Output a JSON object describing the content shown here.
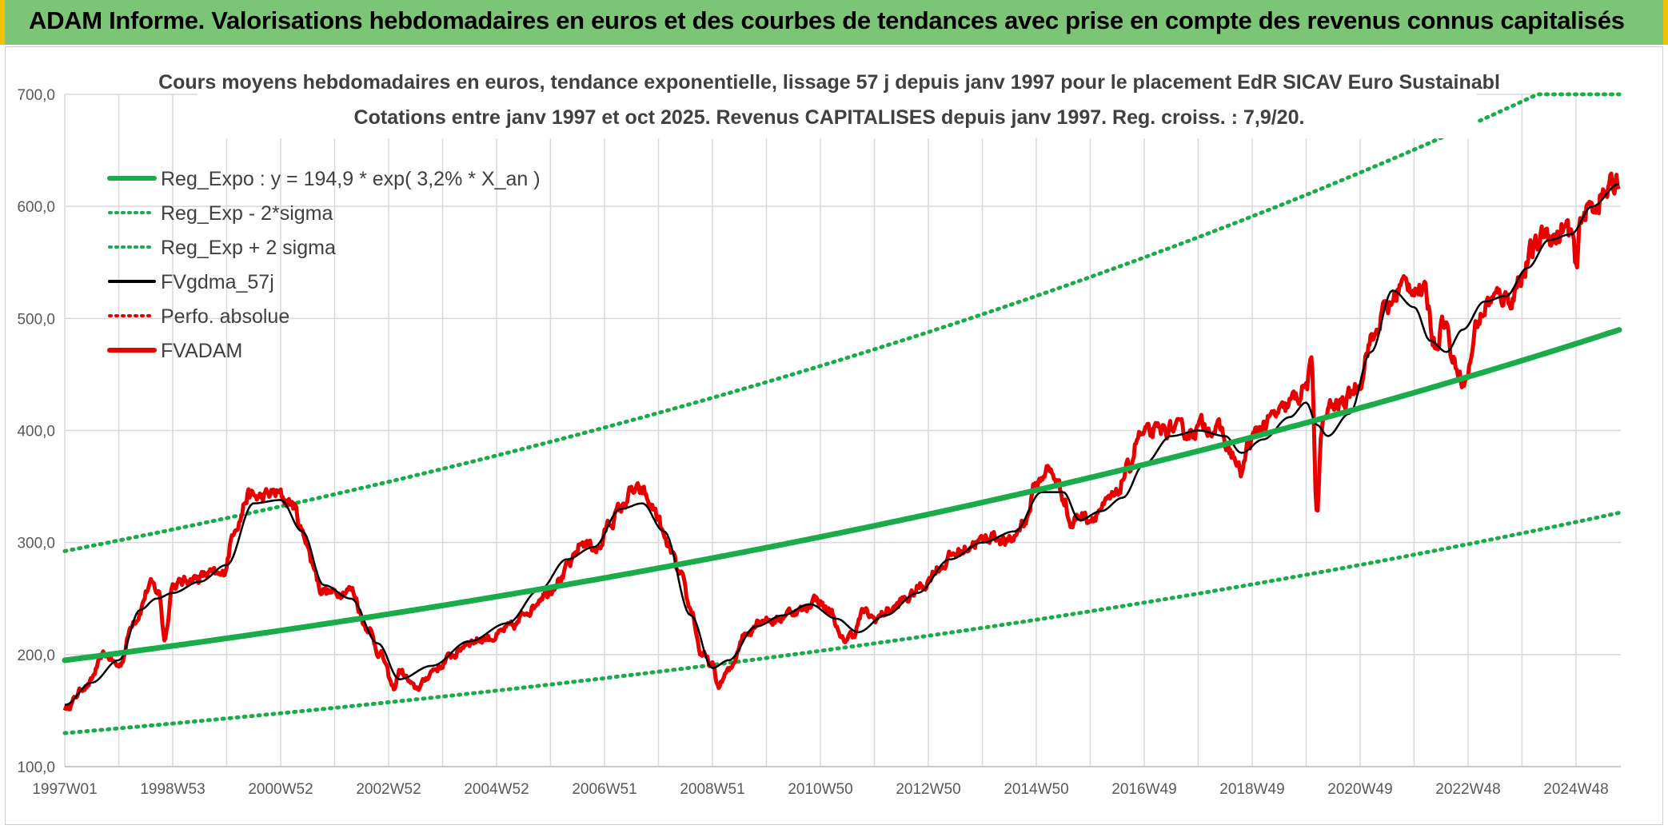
{
  "banner": {
    "title": "ADAM Informe. Valorisations hebdomadaires en euros et des courbes de tendances avec prise en compte des revenus connus capitalisés"
  },
  "colors": {
    "banner_bg": "#7cc576",
    "banner_edge": "#f2c200",
    "reg_expo": "#1aab4b",
    "sigma_band": "#1aab4b",
    "fvgdma": "#000000",
    "perfo": "#e60000",
    "fvadam": "#e60000"
  },
  "chart_data": {
    "type": "line",
    "title": "Cours moyens hebdomadaires en euros, tendance exponentielle, lissage 57 j depuis janv 1997 pour le placement EdR SICAV Euro Sustainabl",
    "subtitle": "Cotations entre janv 1997 et oct 2025. Revenus CAPITALISES depuis janv 1997. Reg. croiss. : 7,9/20.",
    "xlabel": "",
    "ylabel": "",
    "xlim": [
      1997.0,
      2025.83
    ],
    "ylim": [
      100,
      700
    ],
    "grid": true,
    "legend_position": "top-left",
    "y_ticks": [
      {
        "value": 100,
        "label": "100,0"
      },
      {
        "value": 200,
        "label": "200,0"
      },
      {
        "value": 300,
        "label": "300,0"
      },
      {
        "value": 400,
        "label": "400,0"
      },
      {
        "value": 500,
        "label": "500,0"
      },
      {
        "value": 600,
        "label": "600,0"
      },
      {
        "value": 700,
        "label": "700,0"
      }
    ],
    "x_ticks": [
      {
        "value": 1997.0,
        "label": "1997W01"
      },
      {
        "value": 1998.0,
        "label": ""
      },
      {
        "value": 1999.0,
        "label": "1998W53"
      },
      {
        "value": 2000.0,
        "label": ""
      },
      {
        "value": 2001.0,
        "label": "2000W52"
      },
      {
        "value": 2002.0,
        "label": ""
      },
      {
        "value": 2003.0,
        "label": "2002W52"
      },
      {
        "value": 2004.0,
        "label": ""
      },
      {
        "value": 2005.0,
        "label": "2004W52"
      },
      {
        "value": 2006.0,
        "label": ""
      },
      {
        "value": 2007.0,
        "label": "2006W51"
      },
      {
        "value": 2008.0,
        "label": ""
      },
      {
        "value": 2009.0,
        "label": "2008W51"
      },
      {
        "value": 2010.0,
        "label": ""
      },
      {
        "value": 2011.0,
        "label": "2010W50"
      },
      {
        "value": 2012.0,
        "label": ""
      },
      {
        "value": 2013.0,
        "label": "2012W50"
      },
      {
        "value": 2014.0,
        "label": ""
      },
      {
        "value": 2015.0,
        "label": "2014W50"
      },
      {
        "value": 2016.0,
        "label": ""
      },
      {
        "value": 2017.0,
        "label": "2016W49"
      },
      {
        "value": 2018.0,
        "label": ""
      },
      {
        "value": 2019.0,
        "label": "2018W49"
      },
      {
        "value": 2020.0,
        "label": ""
      },
      {
        "value": 2021.0,
        "label": "2020W49"
      },
      {
        "value": 2022.0,
        "label": ""
      },
      {
        "value": 2023.0,
        "label": "2022W48"
      },
      {
        "value": 2024.0,
        "label": ""
      },
      {
        "value": 2025.0,
        "label": "2024W48"
      }
    ],
    "regression": {
      "a": 194.9,
      "rate": 0.032
    },
    "sigma_factor": 1.5,
    "series": [
      {
        "name": "Reg_Expo : y = 194,9 * exp( 3,2% *  X_an )",
        "style": "thick-solid",
        "color": "#1aab4b"
      },
      {
        "name": "Reg_Exp - 2*sigma",
        "style": "dotted",
        "color": "#1aab4b"
      },
      {
        "name": "Reg_Exp + 2 sigma",
        "style": "dotted",
        "color": "#1aab4b"
      },
      {
        "name": "FVgdma_57j",
        "style": "solid",
        "color": "#000000"
      },
      {
        "name": "Perfo. absolue",
        "style": "dotted",
        "color": "#e60000"
      },
      {
        "name": "FVADAM",
        "style": "thick-solid",
        "color": "#e60000"
      }
    ],
    "fvadam_anchors": {
      "x": [
        1997.0,
        1997.4,
        1997.75,
        1998.0,
        1998.3,
        1998.6,
        1998.75,
        1998.85,
        1999.0,
        1999.4,
        1999.7,
        1999.9,
        2000.2,
        2000.4,
        2000.6,
        2000.9,
        2001.2,
        2001.45,
        2001.6,
        2001.75,
        2001.95,
        2002.3,
        2002.6,
        2002.85,
        2003.1,
        2003.2,
        2003.5,
        2003.9,
        2004.2,
        2004.5,
        2004.9,
        2005.3,
        2005.6,
        2005.9,
        2006.2,
        2006.35,
        2006.6,
        2006.9,
        2007.1,
        2007.3,
        2007.5,
        2007.7,
        2007.9,
        2008.2,
        2008.4,
        2008.6,
        2008.8,
        2009.0,
        2009.1,
        2009.3,
        2009.6,
        2009.9,
        2010.2,
        2010.4,
        2010.7,
        2010.9,
        2011.2,
        2011.4,
        2011.6,
        2011.8,
        2012.0,
        2012.3,
        2012.6,
        2012.9,
        2013.2,
        2013.5,
        2013.9,
        2014.2,
        2014.5,
        2014.8,
        2015.0,
        2015.2,
        2015.35,
        2015.5,
        2015.65,
        2015.8,
        2016.0,
        2016.2,
        2016.45,
        2016.7,
        2016.9,
        2017.2,
        2017.5,
        2017.8,
        2018.1,
        2018.4,
        2018.6,
        2018.8,
        2018.95,
        2019.2,
        2019.5,
        2019.8,
        2020.0,
        2020.1,
        2020.2,
        2020.3,
        2020.45,
        2020.7,
        2020.95,
        2021.2,
        2021.5,
        2021.8,
        2022.0,
        2022.2,
        2022.4,
        2022.55,
        2022.75,
        2022.95,
        2023.2,
        2023.4,
        2023.6,
        2023.8,
        2024.0,
        2024.2,
        2024.45,
        2024.6,
        2024.8,
        2024.93,
        2025.0,
        2025.1,
        2025.3,
        2025.5,
        2025.65,
        2025.8
      ],
      "y": [
        152,
        172,
        200,
        190,
        232,
        262,
        255,
        215,
        262,
        268,
        272,
        270,
        318,
        342,
        340,
        344,
        335,
        305,
        280,
        258,
        255,
        258,
        225,
        200,
        170,
        185,
        170,
        188,
        200,
        212,
        215,
        225,
        240,
        255,
        268,
        280,
        300,
        295,
        318,
        330,
        345,
        345,
        330,
        295,
        270,
        240,
        200,
        190,
        172,
        185,
        218,
        232,
        230,
        238,
        240,
        250,
        238,
        212,
        218,
        238,
        232,
        240,
        250,
        262,
        278,
        290,
        300,
        306,
        300,
        320,
        352,
        365,
        358,
        342,
        315,
        325,
        322,
        330,
        340,
        365,
        395,
        398,
        402,
        398,
        405,
        400,
        380,
        362,
        390,
        405,
        415,
        428,
        440,
        455,
        330,
        405,
        420,
        425,
        440,
        480,
        510,
        530,
        530,
        520,
        478,
        500,
        460,
        445,
        500,
        515,
        520,
        518,
        540,
        560,
        578,
        572,
        580,
        575,
        540,
        592,
        600,
        610,
        616,
        626
      ]
    },
    "fvgdma_anchors": {
      "x": [
        1997.0,
        1997.5,
        1998.0,
        1998.4,
        1998.7,
        1999.0,
        1999.5,
        2000.0,
        2000.5,
        2001.0,
        2001.4,
        2001.8,
        2002.3,
        2002.8,
        2003.2,
        2003.8,
        2004.5,
        2005.2,
        2005.8,
        2006.3,
        2006.8,
        2007.3,
        2007.7,
        2008.1,
        2008.6,
        2009.0,
        2009.3,
        2009.8,
        2010.3,
        2010.8,
        2011.3,
        2011.7,
        2012.2,
        2012.8,
        2013.4,
        2014.0,
        2014.6,
        2015.1,
        2015.5,
        2015.8,
        2016.2,
        2016.6,
        2017.0,
        2017.5,
        2018.0,
        2018.5,
        2018.8,
        2019.2,
        2019.7,
        2020.0,
        2020.2,
        2020.4,
        2020.8,
        2021.2,
        2021.6,
        2022.0,
        2022.3,
        2022.6,
        2022.9,
        2023.3,
        2023.7,
        2024.1,
        2024.5,
        2024.9,
        2025.3,
        2025.8
      ],
      "y": [
        155,
        175,
        195,
        240,
        250,
        255,
        265,
        280,
        335,
        338,
        310,
        262,
        250,
        210,
        178,
        190,
        212,
        228,
        258,
        285,
        296,
        330,
        335,
        310,
        235,
        188,
        195,
        225,
        235,
        245,
        232,
        220,
        235,
        255,
        285,
        300,
        310,
        345,
        345,
        320,
        328,
        340,
        370,
        395,
        400,
        395,
        380,
        392,
        412,
        425,
        405,
        395,
        415,
        470,
        525,
        510,
        480,
        470,
        490,
        515,
        520,
        545,
        570,
        575,
        600,
        620
      ]
    }
  }
}
